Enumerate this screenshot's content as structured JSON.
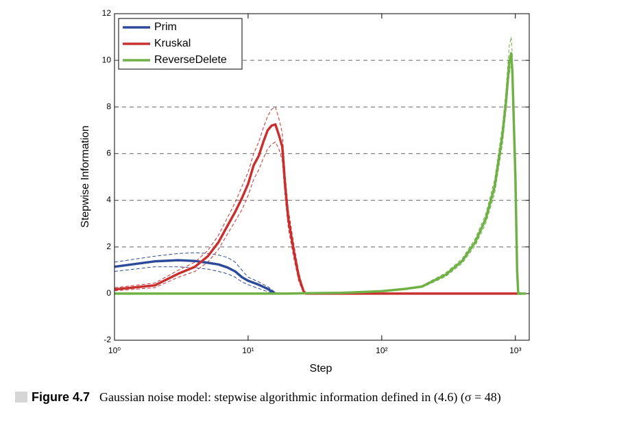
{
  "chart_data": {
    "type": "line",
    "xlabel": "Step",
    "ylabel": "Stepwise Information",
    "xscale": "log",
    "xlim": [
      1,
      1270
    ],
    "ylim": [
      -2,
      12
    ],
    "xticks": [
      {
        "value": 1,
        "label": "10⁰"
      },
      {
        "value": 10,
        "label": "10¹"
      },
      {
        "value": 100,
        "label": "10²"
      },
      {
        "value": 1000,
        "label": "10³"
      }
    ],
    "yticks": [
      -2,
      0,
      2,
      4,
      6,
      8,
      10,
      12
    ],
    "grid": "y",
    "legend": "upper left",
    "series": [
      {
        "name": "Prim",
        "color": "#2d4a9a",
        "x": [
          1,
          2,
          3,
          4,
          5,
          6,
          7,
          8,
          9,
          10,
          12,
          14,
          16
        ],
        "values": [
          1.15,
          1.38,
          1.43,
          1.4,
          1.32,
          1.25,
          1.12,
          0.95,
          0.7,
          0.55,
          0.38,
          0.2,
          0
        ],
        "upper": [
          1.35,
          1.6,
          1.72,
          1.75,
          1.72,
          1.65,
          1.55,
          1.35,
          1.0,
          0.7,
          0.5,
          0.3,
          0.05
        ],
        "lower": [
          0.95,
          1.15,
          1.15,
          1.1,
          1.05,
          0.95,
          0.85,
          0.7,
          0.5,
          0.38,
          0.22,
          0.08,
          0
        ]
      },
      {
        "name": "Kruskal",
        "color": "#c8302f",
        "x": [
          1,
          2,
          3,
          4,
          5,
          6,
          7,
          8,
          9,
          10,
          11,
          12,
          13,
          14,
          15,
          16,
          17,
          18,
          19,
          20,
          22,
          24,
          26,
          27,
          100,
          1000,
          1100
        ],
        "values": [
          0.18,
          0.35,
          0.85,
          1.15,
          1.6,
          2.2,
          2.9,
          3.5,
          4.1,
          4.7,
          5.5,
          5.9,
          6.5,
          7.0,
          7.2,
          7.25,
          6.8,
          6.3,
          4.5,
          3.2,
          1.8,
          0.7,
          0.1,
          0,
          0,
          0,
          0
        ],
        "upper": [
          0.25,
          0.45,
          1.0,
          1.35,
          1.85,
          2.5,
          3.25,
          3.9,
          4.6,
          5.2,
          6.0,
          6.5,
          7.1,
          7.6,
          7.9,
          8.0,
          7.5,
          6.9,
          5.0,
          3.6,
          2.1,
          0.9,
          0.15,
          0,
          0,
          0,
          0
        ],
        "lower": [
          0.12,
          0.25,
          0.7,
          0.95,
          1.35,
          1.9,
          2.55,
          3.1,
          3.6,
          4.2,
          4.9,
          5.3,
          5.8,
          6.2,
          6.4,
          6.5,
          6.2,
          5.7,
          4.0,
          2.8,
          1.5,
          0.5,
          0.05,
          0,
          0,
          0,
          0
        ]
      },
      {
        "name": "ReverseDelete",
        "color": "#6fb146",
        "x": [
          1,
          20,
          30,
          50,
          100,
          150,
          200,
          300,
          400,
          500,
          600,
          700,
          800,
          850,
          900,
          930,
          950,
          1000,
          1030,
          1050,
          1200
        ],
        "values": [
          0,
          0,
          0.02,
          0.03,
          0.1,
          0.2,
          0.3,
          0.8,
          1.4,
          2.2,
          3.2,
          4.6,
          6.8,
          8.2,
          9.9,
          10.3,
          9.5,
          5.0,
          1.0,
          0,
          0
        ],
        "upper": [
          0,
          0,
          0.03,
          0.05,
          0.12,
          0.23,
          0.34,
          0.88,
          1.5,
          2.35,
          3.4,
          4.9,
          7.2,
          8.7,
          10.6,
          11.0,
          10.2,
          5.5,
          1.2,
          0,
          0
        ],
        "lower": [
          0,
          0,
          0.01,
          0.02,
          0.08,
          0.17,
          0.26,
          0.72,
          1.3,
          2.05,
          3.0,
          4.3,
          6.4,
          7.8,
          9.4,
          9.8,
          9.0,
          4.6,
          0.8,
          0,
          0
        ]
      }
    ]
  },
  "caption": {
    "label": "Figure 4.7",
    "text": "Gaussian noise model: stepwise algorithmic information defined in (4.6) (σ = 48)"
  }
}
